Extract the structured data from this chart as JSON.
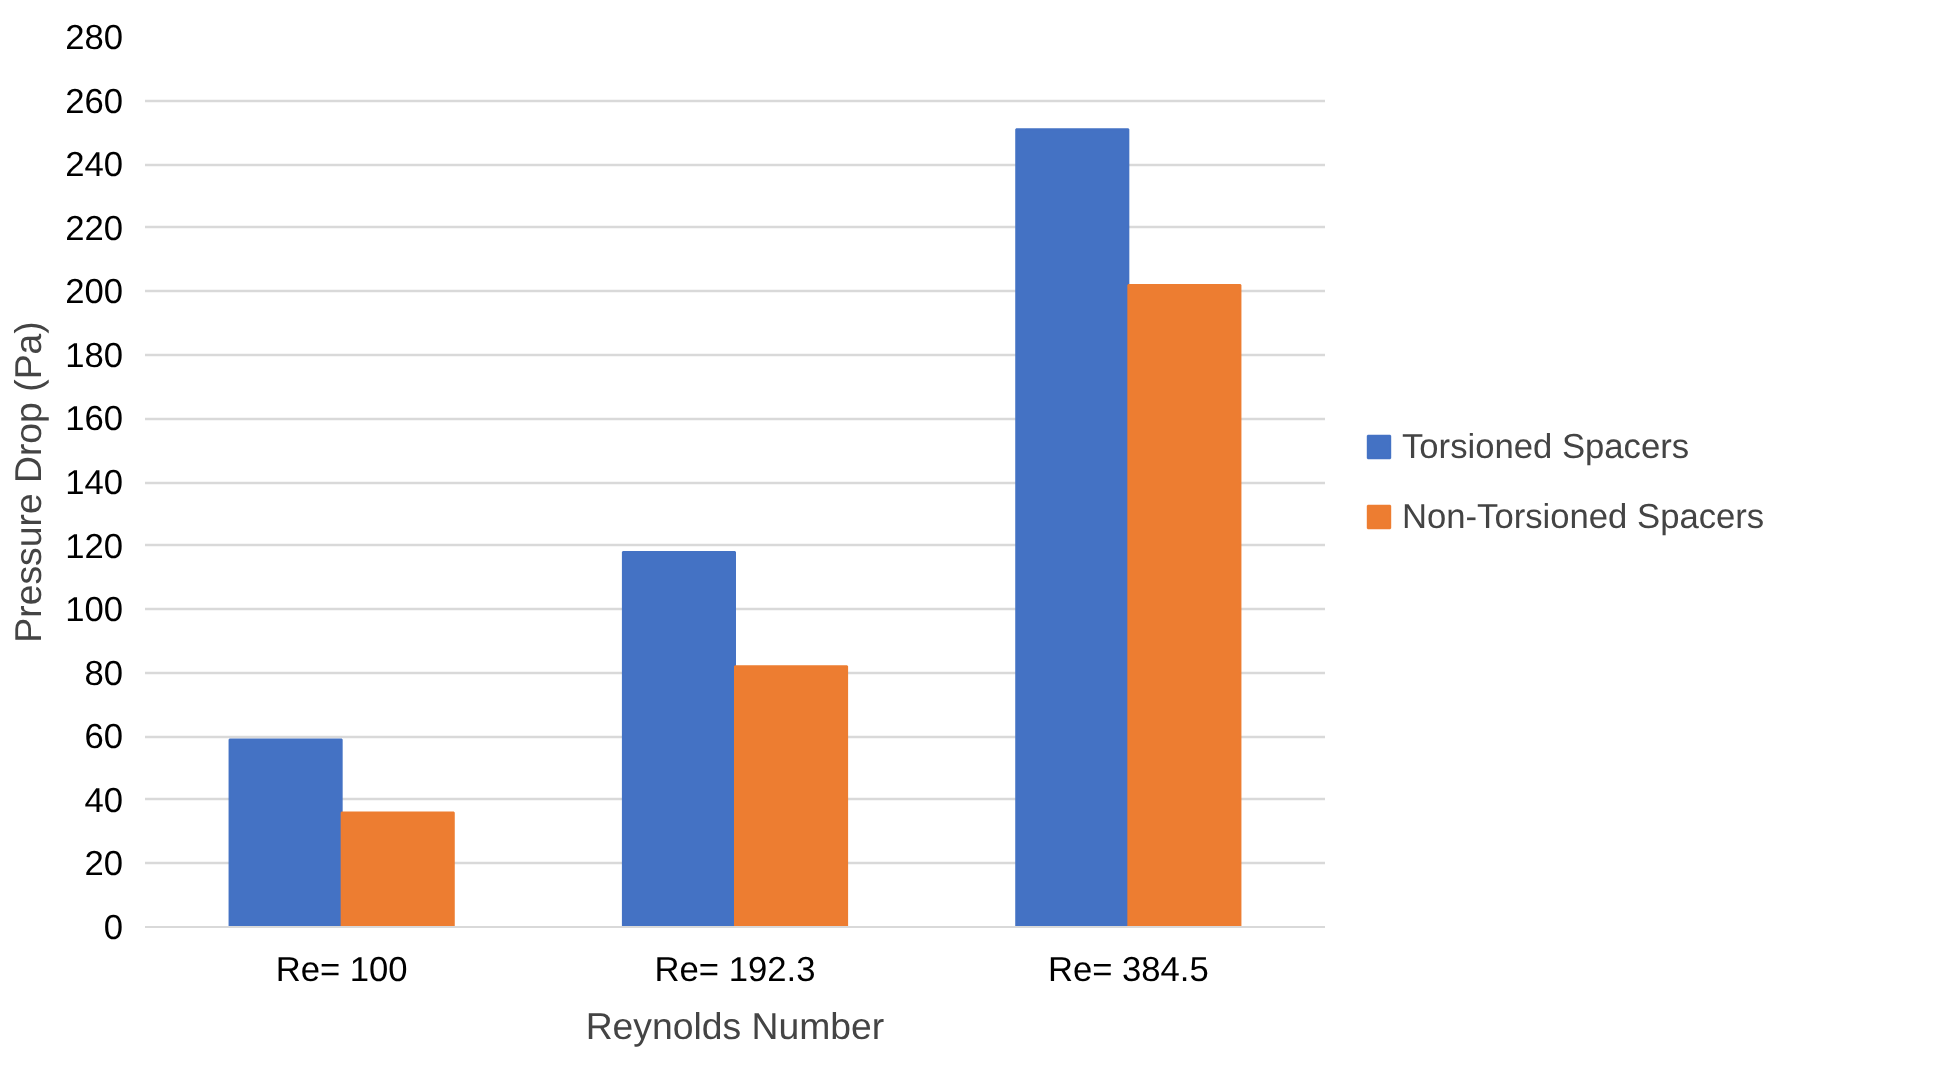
{
  "chart_data": {
    "type": "bar",
    "xlabel": "Reynolds Number",
    "ylabel": "Pressure Drop (Pa)",
    "categories": [
      "Re= 100",
      "Re= 192.3",
      "Re= 384.5"
    ],
    "series": [
      {
        "name": "Torsioned Spacers",
        "color": "#4472c4",
        "values": [
          59,
          118,
          251
        ]
      },
      {
        "name": "Non-Torsioned Spacers",
        "color": "#ed7d31",
        "values": [
          36,
          82,
          202
        ]
      }
    ],
    "ylim": [
      0,
      280
    ],
    "yticks": [
      0,
      20,
      40,
      60,
      80,
      100,
      120,
      140,
      160,
      180,
      200,
      220,
      240,
      260,
      280
    ],
    "grid": "y",
    "legend": "right"
  }
}
